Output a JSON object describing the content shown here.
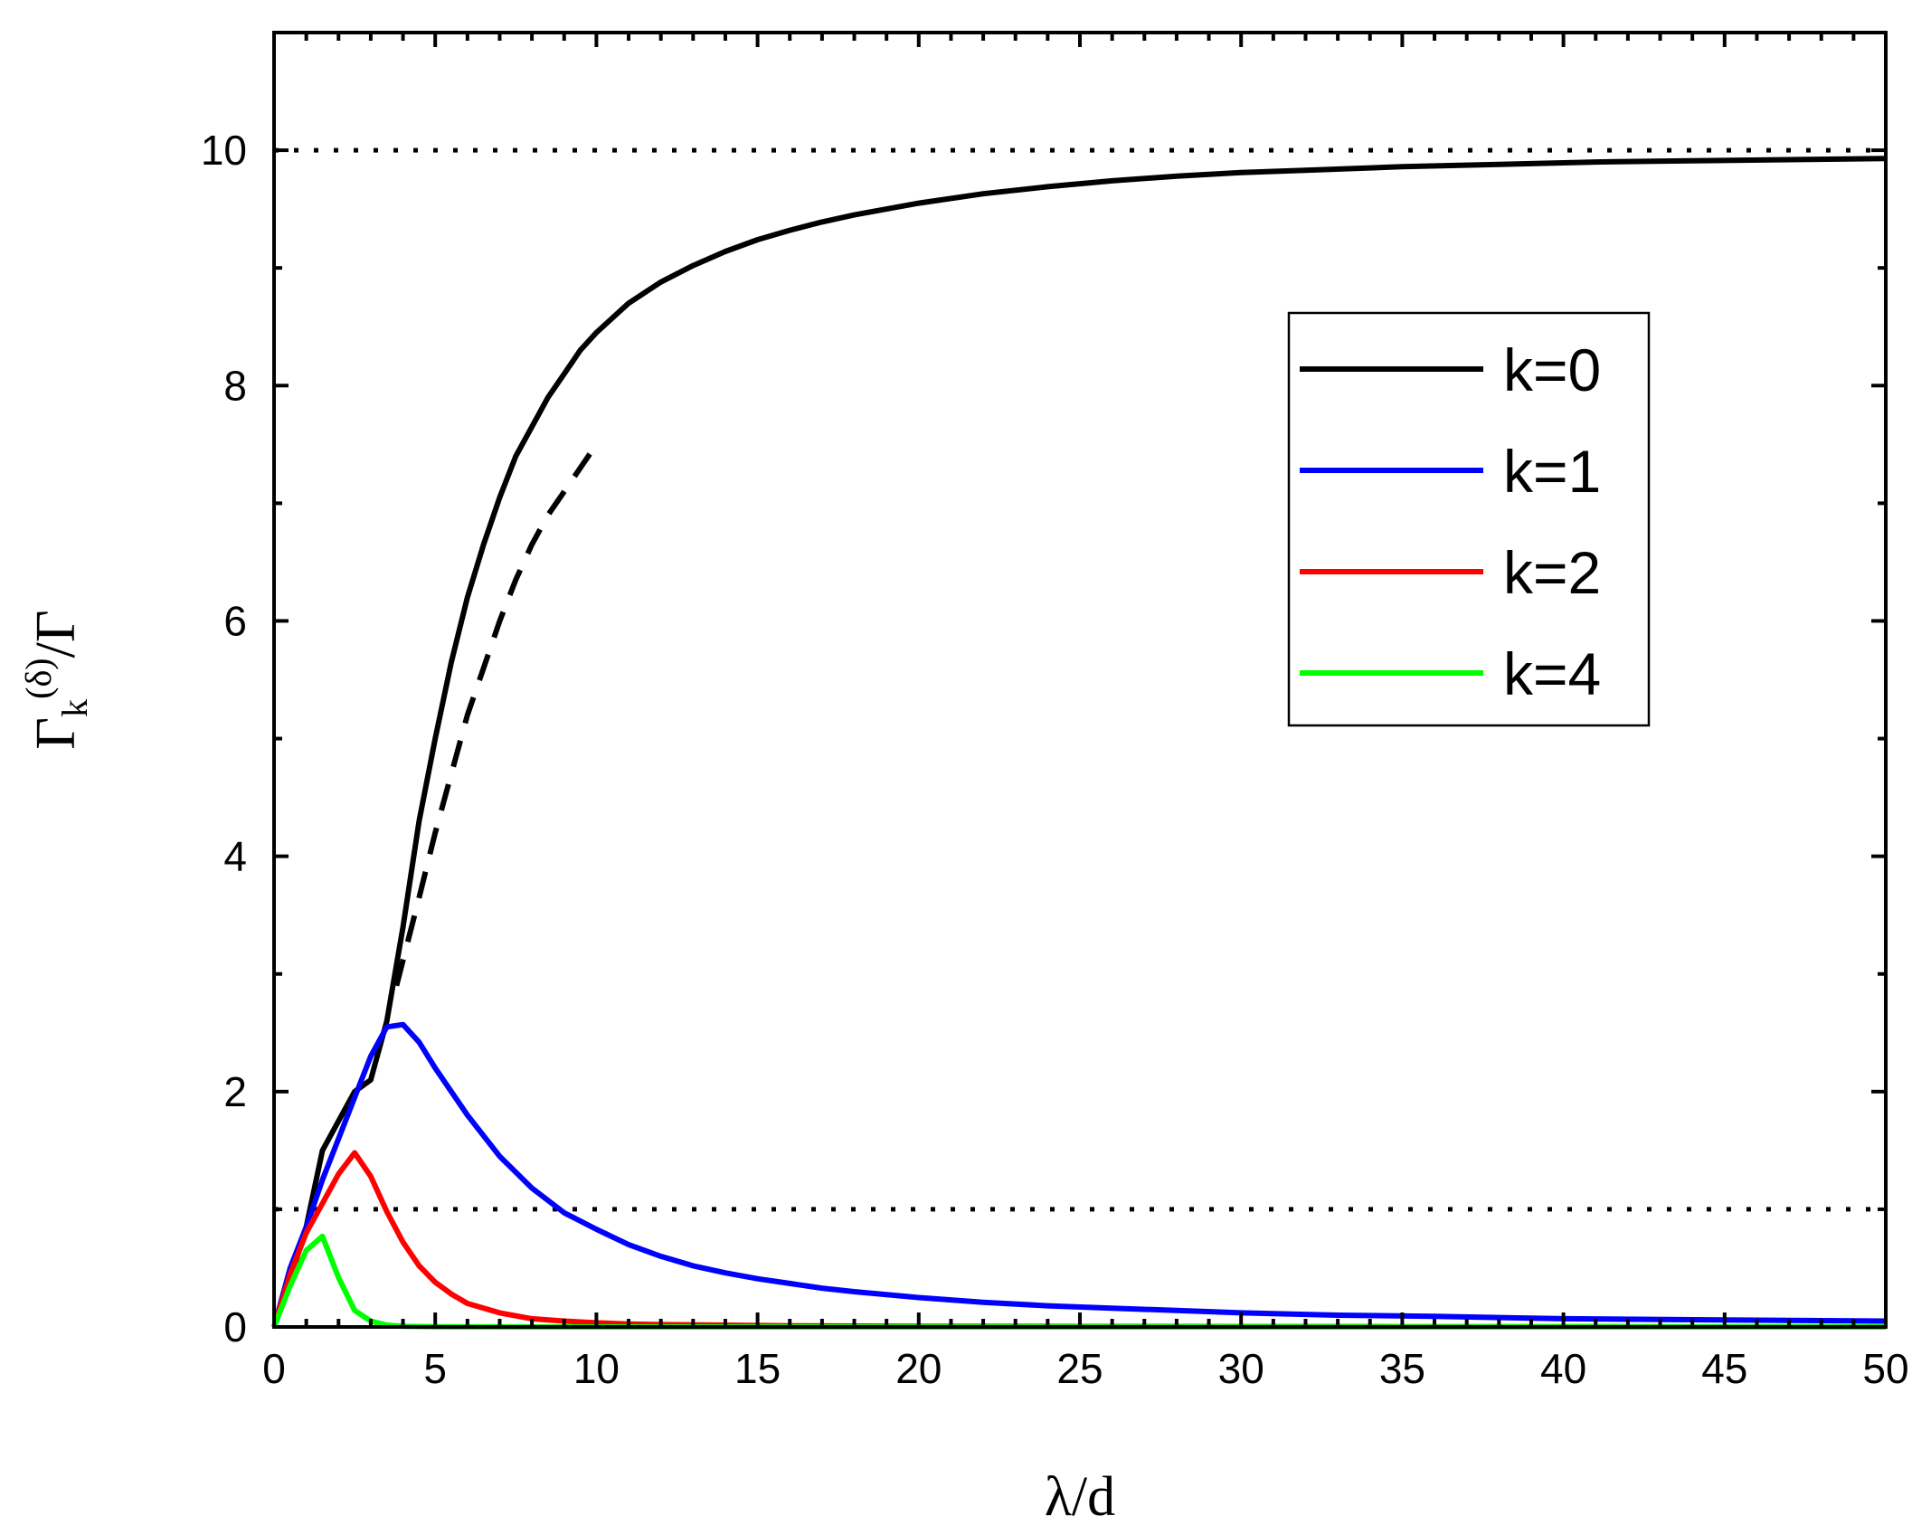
{
  "chart_data": {
    "type": "line",
    "xlabel": "λ/d",
    "ylabel": "Γk(δ)/Γ",
    "ylabel_parts": {
      "main": "Γ",
      "sub": "k",
      "sup": "(δ)",
      "tail": "/Γ"
    },
    "xlim": [
      0,
      50
    ],
    "ylim": [
      0,
      11
    ],
    "xticks": [
      0,
      5,
      10,
      15,
      20,
      25,
      30,
      35,
      40,
      45,
      50
    ],
    "yticks": [
      0,
      2,
      4,
      6,
      8,
      10
    ],
    "legend_position": "upper-right",
    "grid": false,
    "reference_lines": [
      {
        "y": 10,
        "style": "dotted",
        "color": "#000000"
      },
      {
        "y": 1,
        "style": "dotted",
        "color": "#000000"
      }
    ],
    "series": [
      {
        "name": "k=0",
        "color": "#000000",
        "style": "solid",
        "x": [
          0,
          0.5,
          1,
          1.5,
          2,
          2.5,
          3,
          3.5,
          4,
          4.5,
          5,
          5.5,
          6,
          6.5,
          7,
          7.5,
          8,
          8.5,
          9,
          9.5,
          10,
          11,
          12,
          13,
          14,
          15,
          16,
          17,
          18,
          19,
          20,
          22,
          24,
          26,
          28,
          30,
          32,
          35,
          38,
          41,
          44,
          47,
          50
        ],
        "y": [
          0,
          0.4,
          0.85,
          1.5,
          1.75,
          2.0,
          2.1,
          2.6,
          3.4,
          4.3,
          5.0,
          5.65,
          6.2,
          6.65,
          7.05,
          7.4,
          7.65,
          7.9,
          8.1,
          8.3,
          8.45,
          8.7,
          8.88,
          9.02,
          9.14,
          9.24,
          9.32,
          9.39,
          9.45,
          9.5,
          9.55,
          9.63,
          9.69,
          9.74,
          9.78,
          9.81,
          9.83,
          9.86,
          9.88,
          9.9,
          9.91,
          9.92,
          9.93
        ]
      },
      {
        "name": "",
        "color": "#000000",
        "style": "dashed",
        "x": [
          3.8,
          4.5,
          5,
          5.5,
          6,
          6.5,
          7,
          7.5,
          8,
          8.5,
          9,
          9.5,
          10
        ],
        "y": [
          2.9,
          3.65,
          4.2,
          4.7,
          5.2,
          5.6,
          6.0,
          6.35,
          6.65,
          6.9,
          7.1,
          7.3,
          7.5
        ]
      },
      {
        "name": "k=1",
        "color": "#0000ff",
        "style": "solid",
        "x": [
          0,
          0.5,
          1,
          1.5,
          2,
          2.5,
          3,
          3.5,
          4,
          4.5,
          5,
          6,
          7,
          8,
          9,
          10,
          11,
          12,
          13,
          14,
          15,
          16,
          17,
          18,
          20,
          22,
          24,
          26,
          28,
          30,
          33,
          36,
          40,
          45,
          50
        ],
        "y": [
          0,
          0.5,
          0.85,
          1.25,
          1.6,
          1.95,
          2.3,
          2.55,
          2.57,
          2.42,
          2.2,
          1.8,
          1.45,
          1.18,
          0.97,
          0.83,
          0.7,
          0.6,
          0.52,
          0.46,
          0.41,
          0.37,
          0.33,
          0.3,
          0.25,
          0.21,
          0.18,
          0.16,
          0.14,
          0.12,
          0.1,
          0.09,
          0.07,
          0.06,
          0.05
        ]
      },
      {
        "name": "k=2",
        "color": "#ff0000",
        "style": "solid",
        "x": [
          0,
          0.5,
          1,
          1.5,
          2,
          2.5,
          3,
          3.5,
          4,
          4.5,
          5,
          5.5,
          6,
          7,
          8,
          9,
          10,
          11,
          12,
          14,
          16,
          18,
          20,
          25,
          30,
          35,
          40,
          45,
          50
        ],
        "y": [
          0,
          0.45,
          0.8,
          1.05,
          1.3,
          1.48,
          1.28,
          0.98,
          0.72,
          0.52,
          0.38,
          0.28,
          0.2,
          0.12,
          0.07,
          0.05,
          0.035,
          0.025,
          0.02,
          0.015,
          0.01,
          0.008,
          0.006,
          0.004,
          0.003,
          0.002,
          0.002,
          0.001,
          0.001
        ]
      },
      {
        "name": "k=4",
        "color": "#00ff00",
        "style": "solid",
        "x": [
          0,
          0.5,
          1,
          1.5,
          2,
          2.5,
          3,
          3.5,
          4,
          5,
          6,
          8,
          10,
          15,
          20,
          30,
          40,
          50
        ],
        "y": [
          0,
          0.35,
          0.65,
          0.77,
          0.42,
          0.14,
          0.05,
          0.015,
          0.005,
          0.002,
          0.001,
          0,
          0,
          0,
          0,
          0,
          0,
          0
        ]
      }
    ]
  }
}
